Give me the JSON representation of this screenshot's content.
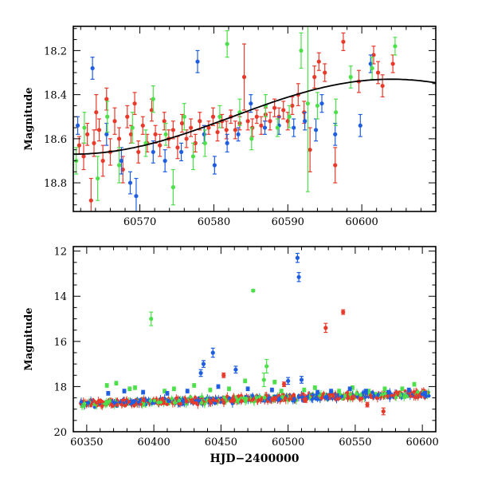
{
  "chart_data": [
    {
      "type": "scatter",
      "panel": "top",
      "title": "",
      "xlabel": "",
      "ylabel": "Magnitude",
      "xlim": [
        60561,
        60610
      ],
      "ylim": [
        18.93,
        18.09
      ],
      "y_inverted": true,
      "grid": false,
      "xticks": [
        60570,
        60580,
        60590,
        60600
      ],
      "yticks": [
        18.2,
        18.4,
        18.6,
        18.8
      ],
      "series": [
        {
          "color": "#e8392a",
          "points": [
            [
              60561.8,
              18.63,
              0.04
            ],
            [
              60562.4,
              18.68,
              0.06
            ],
            [
              60562.9,
              18.58,
              0.05
            ],
            [
              60563.4,
              18.88,
              0.1
            ],
            [
              60563.8,
              18.62,
              0.06
            ],
            [
              60564.1,
              18.48,
              0.08
            ],
            [
              60564.5,
              18.56,
              0.05
            ],
            [
              60565.0,
              18.7,
              0.07
            ],
            [
              60565.5,
              18.42,
              0.05
            ],
            [
              60566.0,
              18.66,
              0.06
            ],
            [
              60566.6,
              18.52,
              0.06
            ],
            [
              60567.2,
              18.6,
              0.05
            ],
            [
              60567.7,
              18.74,
              0.06
            ],
            [
              60568.3,
              18.5,
              0.05
            ],
            [
              60568.8,
              18.58,
              0.04
            ],
            [
              60569.3,
              18.44,
              0.05
            ],
            [
              60569.8,
              18.66,
              0.05
            ],
            [
              60570.4,
              18.54,
              0.04
            ],
            [
              60571.0,
              18.62,
              0.04
            ],
            [
              60571.6,
              18.47,
              0.05
            ],
            [
              60572.1,
              18.58,
              0.04
            ],
            [
              60572.7,
              18.63,
              0.05
            ],
            [
              60573.3,
              18.52,
              0.04
            ],
            [
              60573.9,
              18.6,
              0.04
            ],
            [
              60574.5,
              18.56,
              0.04
            ],
            [
              60575.1,
              18.64,
              0.05
            ],
            [
              60575.7,
              18.53,
              0.04
            ],
            [
              60576.3,
              18.6,
              0.04
            ],
            [
              60576.9,
              18.55,
              0.04
            ],
            [
              60577.5,
              18.62,
              0.04
            ],
            [
              60578.1,
              18.52,
              0.04
            ],
            [
              60578.7,
              18.58,
              0.04
            ],
            [
              60579.3,
              18.55,
              0.03
            ],
            [
              60579.9,
              18.5,
              0.04
            ],
            [
              60580.5,
              18.57,
              0.04
            ],
            [
              60581.1,
              18.52,
              0.03
            ],
            [
              60581.7,
              18.56,
              0.04
            ],
            [
              60582.3,
              18.5,
              0.03
            ],
            [
              60582.9,
              18.56,
              0.04
            ],
            [
              60583.5,
              18.53,
              0.03
            ],
            [
              60584.1,
              18.32,
              0.15
            ],
            [
              60584.6,
              18.52,
              0.04
            ],
            [
              60585.2,
              18.55,
              0.04
            ],
            [
              60585.8,
              18.5,
              0.03
            ],
            [
              60586.4,
              18.54,
              0.04
            ],
            [
              60587.0,
              18.49,
              0.03
            ],
            [
              60587.6,
              18.52,
              0.04
            ],
            [
              60588.2,
              18.46,
              0.04
            ],
            [
              60588.8,
              18.5,
              0.04
            ],
            [
              60589.4,
              18.47,
              0.04
            ],
            [
              60590.0,
              18.52,
              0.04
            ],
            [
              60590.6,
              18.45,
              0.04
            ],
            [
              60591.4,
              18.4,
              0.05
            ],
            [
              60592.2,
              18.48,
              0.05
            ],
            [
              60593.0,
              18.65,
              0.1
            ],
            [
              60593.6,
              18.32,
              0.05
            ],
            [
              60594.2,
              18.25,
              0.04
            ],
            [
              60595.0,
              18.3,
              0.04
            ],
            [
              60596.4,
              18.72,
              0.08
            ],
            [
              60597.5,
              18.16,
              0.04
            ],
            [
              60599.6,
              18.34,
              0.05
            ],
            [
              60601.6,
              18.22,
              0.04
            ],
            [
              60602.2,
              18.3,
              0.05
            ],
            [
              60602.8,
              18.36,
              0.05
            ],
            [
              60604.2,
              18.26,
              0.04
            ]
          ]
        },
        {
          "color": "#1f5ee0",
          "points": [
            [
              60561.6,
              18.54,
              0.04
            ],
            [
              60563.6,
              18.28,
              0.05
            ],
            [
              60565.5,
              18.58,
              0.05
            ],
            [
              60567.5,
              18.7,
              0.06
            ],
            [
              60568.7,
              18.8,
              0.05
            ],
            [
              60569.5,
              18.86,
              0.08
            ],
            [
              60571.8,
              18.66,
              0.05
            ],
            [
              60573.4,
              18.7,
              0.05
            ],
            [
              60575.6,
              18.66,
              0.04
            ],
            [
              60577.8,
              18.25,
              0.05
            ],
            [
              60578.7,
              18.58,
              0.04
            ],
            [
              60580.1,
              18.72,
              0.04
            ],
            [
              60581.8,
              18.62,
              0.04
            ],
            [
              60583.3,
              18.58,
              0.03
            ],
            [
              60585.0,
              18.44,
              0.04
            ],
            [
              60586.9,
              18.55,
              0.03
            ],
            [
              60588.8,
              18.54,
              0.04
            ],
            [
              60590.8,
              18.55,
              0.04
            ],
            [
              60592.3,
              18.52,
              0.04
            ],
            [
              60593.8,
              18.56,
              0.05
            ],
            [
              60594.6,
              18.44,
              0.04
            ],
            [
              60596.4,
              18.58,
              0.05
            ],
            [
              60599.8,
              18.54,
              0.05
            ],
            [
              60601.2,
              18.26,
              0.04
            ]
          ]
        },
        {
          "color": "#4de04a",
          "points": [
            [
              60561.4,
              18.7,
              0.06
            ],
            [
              60562.5,
              18.55,
              0.07
            ],
            [
              60564.3,
              18.78,
              0.1
            ],
            [
              60565.6,
              18.5,
              0.07
            ],
            [
              60567.2,
              18.72,
              0.08
            ],
            [
              60569.0,
              18.55,
              0.07
            ],
            [
              60570.8,
              18.62,
              0.06
            ],
            [
              60571.8,
              18.42,
              0.06
            ],
            [
              60573.5,
              18.58,
              0.05
            ],
            [
              60574.5,
              18.82,
              0.08
            ],
            [
              60576.0,
              18.5,
              0.06
            ],
            [
              60577.2,
              18.68,
              0.06
            ],
            [
              60578.8,
              18.62,
              0.06
            ],
            [
              60580.8,
              18.5,
              0.05
            ],
            [
              60581.8,
              18.17,
              0.06
            ],
            [
              60583.5,
              18.48,
              0.06
            ],
            [
              60585.1,
              18.6,
              0.05
            ],
            [
              60587.0,
              18.45,
              0.05
            ],
            [
              60588.6,
              18.55,
              0.04
            ],
            [
              60590.2,
              18.5,
              0.05
            ],
            [
              60591.8,
              18.2,
              0.08
            ],
            [
              60592.7,
              18.44,
              0.4
            ],
            [
              60594.0,
              18.45,
              0.06
            ],
            [
              60596.5,
              18.48,
              0.06
            ],
            [
              60598.5,
              18.32,
              0.05
            ],
            [
              60601.4,
              18.28,
              0.05
            ],
            [
              60604.5,
              18.18,
              0.04
            ]
          ]
        }
      ],
      "model_curve": {
        "color": "#000000",
        "peak_x": 60604,
        "peak_y": 18.33,
        "base_y": 18.67,
        "start_x": 60561
      }
    },
    {
      "type": "scatter",
      "panel": "bottom",
      "title": "",
      "xlabel": "HJD−2400000",
      "ylabel": "Magnitude",
      "xlim": [
        60340,
        60610
      ],
      "ylim": [
        20,
        11.8
      ],
      "y_inverted": true,
      "grid": false,
      "xticks": [
        60350,
        60400,
        60450,
        60500,
        60550,
        60600
      ],
      "yticks": [
        12,
        14,
        16,
        18,
        20
      ],
      "series": [
        {
          "color": "#4de04a",
          "points": [
            [
              60398,
              15.0,
              0.3
            ],
            [
              60474,
              13.75,
              0.05
            ],
            [
              60365,
              17.95,
              0.08
            ],
            [
              60372,
              17.85,
              0.08
            ],
            [
              60382,
              18.1,
              0.08
            ],
            [
              60386,
              18.05,
              0.08
            ],
            [
              60408,
              18.2,
              0.08
            ],
            [
              60415,
              18.1,
              0.08
            ],
            [
              60430,
              17.95,
              0.08
            ],
            [
              60442,
              18.15,
              0.08
            ],
            [
              60456,
              18.1,
              0.08
            ],
            [
              60468,
              17.75,
              0.08
            ],
            [
              60482,
              17.7,
              0.3
            ],
            [
              60484,
              17.1,
              0.3
            ],
            [
              60490,
              17.8,
              0.08
            ],
            [
              60495,
              18.2,
              0.08
            ],
            [
              60512,
              18.15,
              0.08
            ],
            [
              60520,
              18.05,
              0.08
            ],
            [
              60538,
              18.2,
              0.08
            ],
            [
              60548,
              18.05,
              0.08
            ],
            [
              60560,
              18.2,
              0.08
            ],
            [
              60572,
              18.1,
              0.08
            ],
            [
              60585,
              18.1,
              0.08
            ],
            [
              60594,
              17.9,
              0.08
            ]
          ]
        },
        {
          "color": "#1f5ee0",
          "points": [
            [
              60507,
              12.3,
              0.2
            ],
            [
              60508,
              13.15,
              0.2
            ],
            [
              60444,
              16.5,
              0.2
            ],
            [
              60435,
              17.4,
              0.15
            ],
            [
              60437,
              17.0,
              0.15
            ],
            [
              60461,
              17.25,
              0.15
            ],
            [
              60500,
              17.75,
              0.15
            ],
            [
              60510,
              17.7,
              0.15
            ],
            [
              60366,
              18.3,
              0.08
            ],
            [
              60378,
              18.2,
              0.08
            ],
            [
              60392,
              18.25,
              0.08
            ],
            [
              60410,
              18.3,
              0.08
            ],
            [
              60425,
              18.2,
              0.08
            ],
            [
              60448,
              18.0,
              0.08
            ],
            [
              60470,
              18.1,
              0.08
            ],
            [
              60488,
              18.15,
              0.08
            ],
            [
              60522,
              18.25,
              0.08
            ],
            [
              60532,
              18.2,
              0.08
            ],
            [
              60546,
              18.1,
              0.08
            ],
            [
              60558,
              18.2,
              0.08
            ],
            [
              60575,
              18.25,
              0.08
            ],
            [
              60590,
              18.15,
              0.08
            ],
            [
              60602,
              18.3,
              0.08
            ]
          ]
        },
        {
          "color": "#e8392a",
          "points": [
            [
              60528,
              15.4,
              0.2
            ],
            [
              60541,
              14.7,
              0.1
            ],
            [
              60452,
              17.5,
              0.1
            ],
            [
              60497,
              17.9,
              0.1
            ],
            [
              60513,
              18.6,
              0.1
            ],
            [
              60559,
              18.8,
              0.1
            ],
            [
              60571,
              19.1,
              0.15
            ]
          ]
        }
      ],
      "dense_band": {
        "x_from": 60345,
        "x_to": 60605,
        "center_start": 18.78,
        "center_end": 18.32,
        "spread": 0.12,
        "colors": [
          "#1f5ee0",
          "#4de04a",
          "#e8392a",
          "#e8392a"
        ]
      }
    }
  ]
}
